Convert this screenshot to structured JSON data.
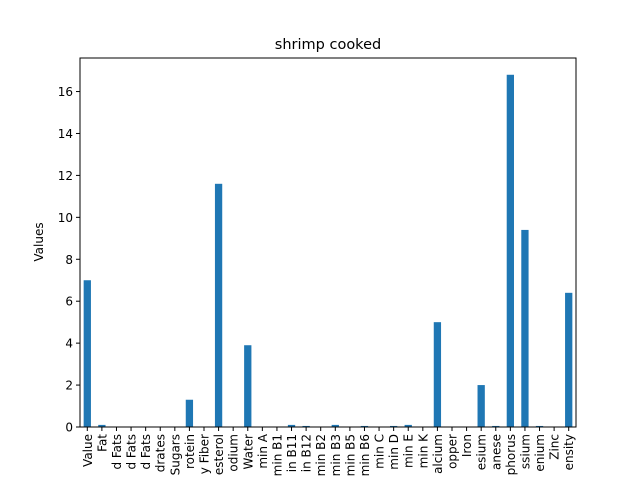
{
  "chart_data": {
    "type": "bar",
    "title": "shrimp cooked",
    "xlabel": "",
    "ylabel": "Values",
    "ylim": [
      0,
      17.6
    ],
    "yticks": [
      0,
      2,
      4,
      6,
      8,
      10,
      12,
      14,
      16
    ],
    "grid": false,
    "legend": "none",
    "bar_color": "#1f77b4",
    "categories": [
      "Value",
      "Fat",
      "d Fats",
      "d Fats",
      "d Fats",
      "drates",
      "Sugars",
      "rotein",
      "y Fiber",
      "esterol",
      "odium",
      "Water",
      "min A",
      "min B1",
      "in B11",
      "in B12",
      "min B2",
      "min B3",
      "min B5",
      "min B6",
      "min C",
      "min D",
      "min E",
      "min K",
      "alcium",
      "opper",
      "Iron",
      "esium",
      "anese",
      "phorus",
      "ssium",
      "enium",
      "Zinc",
      "ensity"
    ],
    "values": [
      7.0,
      0.1,
      0.02,
      0.02,
      0.02,
      0.0,
      0.0,
      1.3,
      0.0,
      11.6,
      0.0,
      3.9,
      0.0,
      0.0,
      0.1,
      0.05,
      0.02,
      0.1,
      0.02,
      0.05,
      0.0,
      0.05,
      0.1,
      0.0,
      5.0,
      0.0,
      0.0,
      2.0,
      0.05,
      16.8,
      9.4,
      0.05,
      0.0,
      6.4
    ]
  }
}
